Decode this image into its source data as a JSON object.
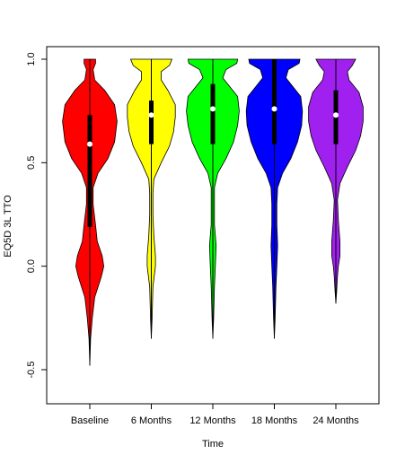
{
  "chart_data": {
    "type": "violin",
    "xlabel": "Time",
    "ylabel": "EQ5D 3L TTO",
    "ylim": [
      -0.65,
      1.0
    ],
    "yticks": [
      {
        "value": -0.5,
        "label": "-0.5"
      },
      {
        "value": 0.0,
        "label": "0.0"
      },
      {
        "value": 0.5,
        "label": "0.5"
      },
      {
        "value": 1.0,
        "label": "1.0"
      }
    ],
    "categories": [
      "Baseline",
      "6 Months",
      "12 Months",
      "18 Months",
      "24 Months"
    ],
    "series": [
      {
        "category": "Baseline",
        "color": "#ff0000",
        "min": -0.48,
        "q1": 0.19,
        "median": 0.59,
        "q3": 0.73,
        "max": 1.0,
        "density": [
          [
            -0.48,
            0.0
          ],
          [
            -0.35,
            0.01
          ],
          [
            -0.25,
            0.03
          ],
          [
            -0.15,
            0.06
          ],
          [
            -0.05,
            0.14
          ],
          [
            0.0,
            0.17
          ],
          [
            0.05,
            0.15
          ],
          [
            0.12,
            0.09
          ],
          [
            0.2,
            0.07
          ],
          [
            0.3,
            0.04
          ],
          [
            0.38,
            0.04
          ],
          [
            0.45,
            0.1
          ],
          [
            0.52,
            0.22
          ],
          [
            0.6,
            0.3
          ],
          [
            0.7,
            0.33
          ],
          [
            0.78,
            0.3
          ],
          [
            0.85,
            0.18
          ],
          [
            0.9,
            0.06
          ],
          [
            0.95,
            0.04
          ],
          [
            0.98,
            0.07
          ],
          [
            1.0,
            0.07
          ]
        ]
      },
      {
        "category": "6 Months",
        "color": "#ffff00",
        "min": -0.35,
        "q1": 0.59,
        "median": 0.73,
        "q3": 0.8,
        "max": 1.0,
        "density": [
          [
            -0.35,
            0.0
          ],
          [
            -0.25,
            0.01
          ],
          [
            -0.1,
            0.02
          ],
          [
            0.0,
            0.05
          ],
          [
            0.05,
            0.05
          ],
          [
            0.15,
            0.03
          ],
          [
            0.25,
            0.02
          ],
          [
            0.35,
            0.02
          ],
          [
            0.42,
            0.03
          ],
          [
            0.5,
            0.12
          ],
          [
            0.58,
            0.22
          ],
          [
            0.65,
            0.27
          ],
          [
            0.72,
            0.29
          ],
          [
            0.78,
            0.29
          ],
          [
            0.85,
            0.2
          ],
          [
            0.9,
            0.12
          ],
          [
            0.94,
            0.12
          ],
          [
            0.97,
            0.22
          ],
          [
            1.0,
            0.25
          ]
        ]
      },
      {
        "category": "12 Months",
        "color": "#00ff00",
        "min": -0.35,
        "q1": 0.59,
        "median": 0.76,
        "q3": 0.88,
        "max": 1.0,
        "density": [
          [
            -0.35,
            0.0
          ],
          [
            -0.25,
            0.01
          ],
          [
            -0.1,
            0.02
          ],
          [
            0.0,
            0.03
          ],
          [
            0.1,
            0.04
          ],
          [
            0.2,
            0.02
          ],
          [
            0.3,
            0.02
          ],
          [
            0.38,
            0.02
          ],
          [
            0.45,
            0.06
          ],
          [
            0.52,
            0.16
          ],
          [
            0.6,
            0.25
          ],
          [
            0.68,
            0.3
          ],
          [
            0.75,
            0.32
          ],
          [
            0.82,
            0.3
          ],
          [
            0.87,
            0.2
          ],
          [
            0.91,
            0.12
          ],
          [
            0.95,
            0.16
          ],
          [
            0.98,
            0.29
          ],
          [
            1.0,
            0.3
          ]
        ]
      },
      {
        "category": "18 Months",
        "color": "#0000ff",
        "min": -0.35,
        "q1": 0.59,
        "median": 0.76,
        "q3": 1.0,
        "max": 1.0,
        "density": [
          [
            -0.35,
            0.0
          ],
          [
            -0.25,
            0.01
          ],
          [
            -0.1,
            0.02
          ],
          [
            0.0,
            0.03
          ],
          [
            0.1,
            0.04
          ],
          [
            0.2,
            0.03
          ],
          [
            0.3,
            0.03
          ],
          [
            0.38,
            0.04
          ],
          [
            0.45,
            0.1
          ],
          [
            0.52,
            0.2
          ],
          [
            0.6,
            0.28
          ],
          [
            0.68,
            0.33
          ],
          [
            0.75,
            0.34
          ],
          [
            0.82,
            0.32
          ],
          [
            0.87,
            0.22
          ],
          [
            0.91,
            0.14
          ],
          [
            0.95,
            0.17
          ],
          [
            0.98,
            0.3
          ],
          [
            1.0,
            0.31
          ]
        ]
      },
      {
        "category": "24 Months",
        "color": "#a020f0",
        "min": -0.18,
        "q1": 0.59,
        "median": 0.73,
        "q3": 0.85,
        "max": 1.0,
        "density": [
          [
            -0.18,
            0.0
          ],
          [
            -0.12,
            0.01
          ],
          [
            -0.05,
            0.02
          ],
          [
            0.0,
            0.03
          ],
          [
            0.05,
            0.05
          ],
          [
            0.12,
            0.05
          ],
          [
            0.22,
            0.03
          ],
          [
            0.32,
            0.02
          ],
          [
            0.4,
            0.05
          ],
          [
            0.48,
            0.14
          ],
          [
            0.56,
            0.24
          ],
          [
            0.63,
            0.3
          ],
          [
            0.7,
            0.33
          ],
          [
            0.77,
            0.33
          ],
          [
            0.84,
            0.28
          ],
          [
            0.9,
            0.16
          ],
          [
            0.94,
            0.14
          ],
          [
            0.97,
            0.2
          ],
          [
            1.0,
            0.24
          ]
        ]
      }
    ]
  }
}
